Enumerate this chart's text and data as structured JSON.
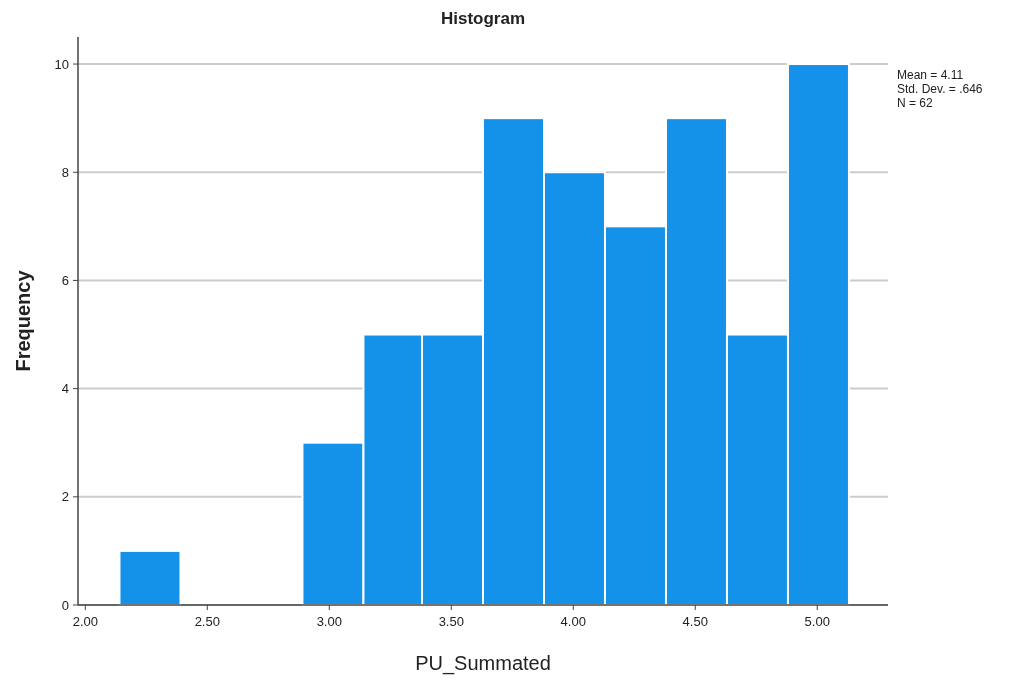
{
  "chart_data": {
    "type": "histogram",
    "title": "Histogram",
    "xlabel": "PU_Summated",
    "ylabel": "Frequency",
    "bins": [
      2.14,
      2.39,
      2.89,
      3.14,
      3.38,
      3.63,
      3.88,
      4.13,
      4.38,
      4.63,
      4.88,
      5.13
    ],
    "values": [
      1,
      0,
      3,
      5,
      5,
      9,
      8,
      7,
      9,
      5,
      10
    ],
    "color": "#1491e8",
    "xlim": [
      1.97,
      5.29
    ],
    "xticks": [
      {
        "value": 2,
        "label": "2.00"
      },
      {
        "value": 2.5,
        "label": "2.50"
      },
      {
        "value": 3,
        "label": "3.00"
      },
      {
        "value": 3.5,
        "label": "3.50"
      },
      {
        "value": 4,
        "label": "4.00"
      },
      {
        "value": 4.5,
        "label": "4.50"
      },
      {
        "value": 5,
        "label": "5.00"
      }
    ],
    "ylim": [
      0,
      10.5
    ],
    "yticks": [
      0,
      2,
      4,
      6,
      8,
      10
    ],
    "grid": "y",
    "annotations": [
      "Mean = 4.11",
      "Std. Dev. = .646",
      "N = 62"
    ]
  }
}
